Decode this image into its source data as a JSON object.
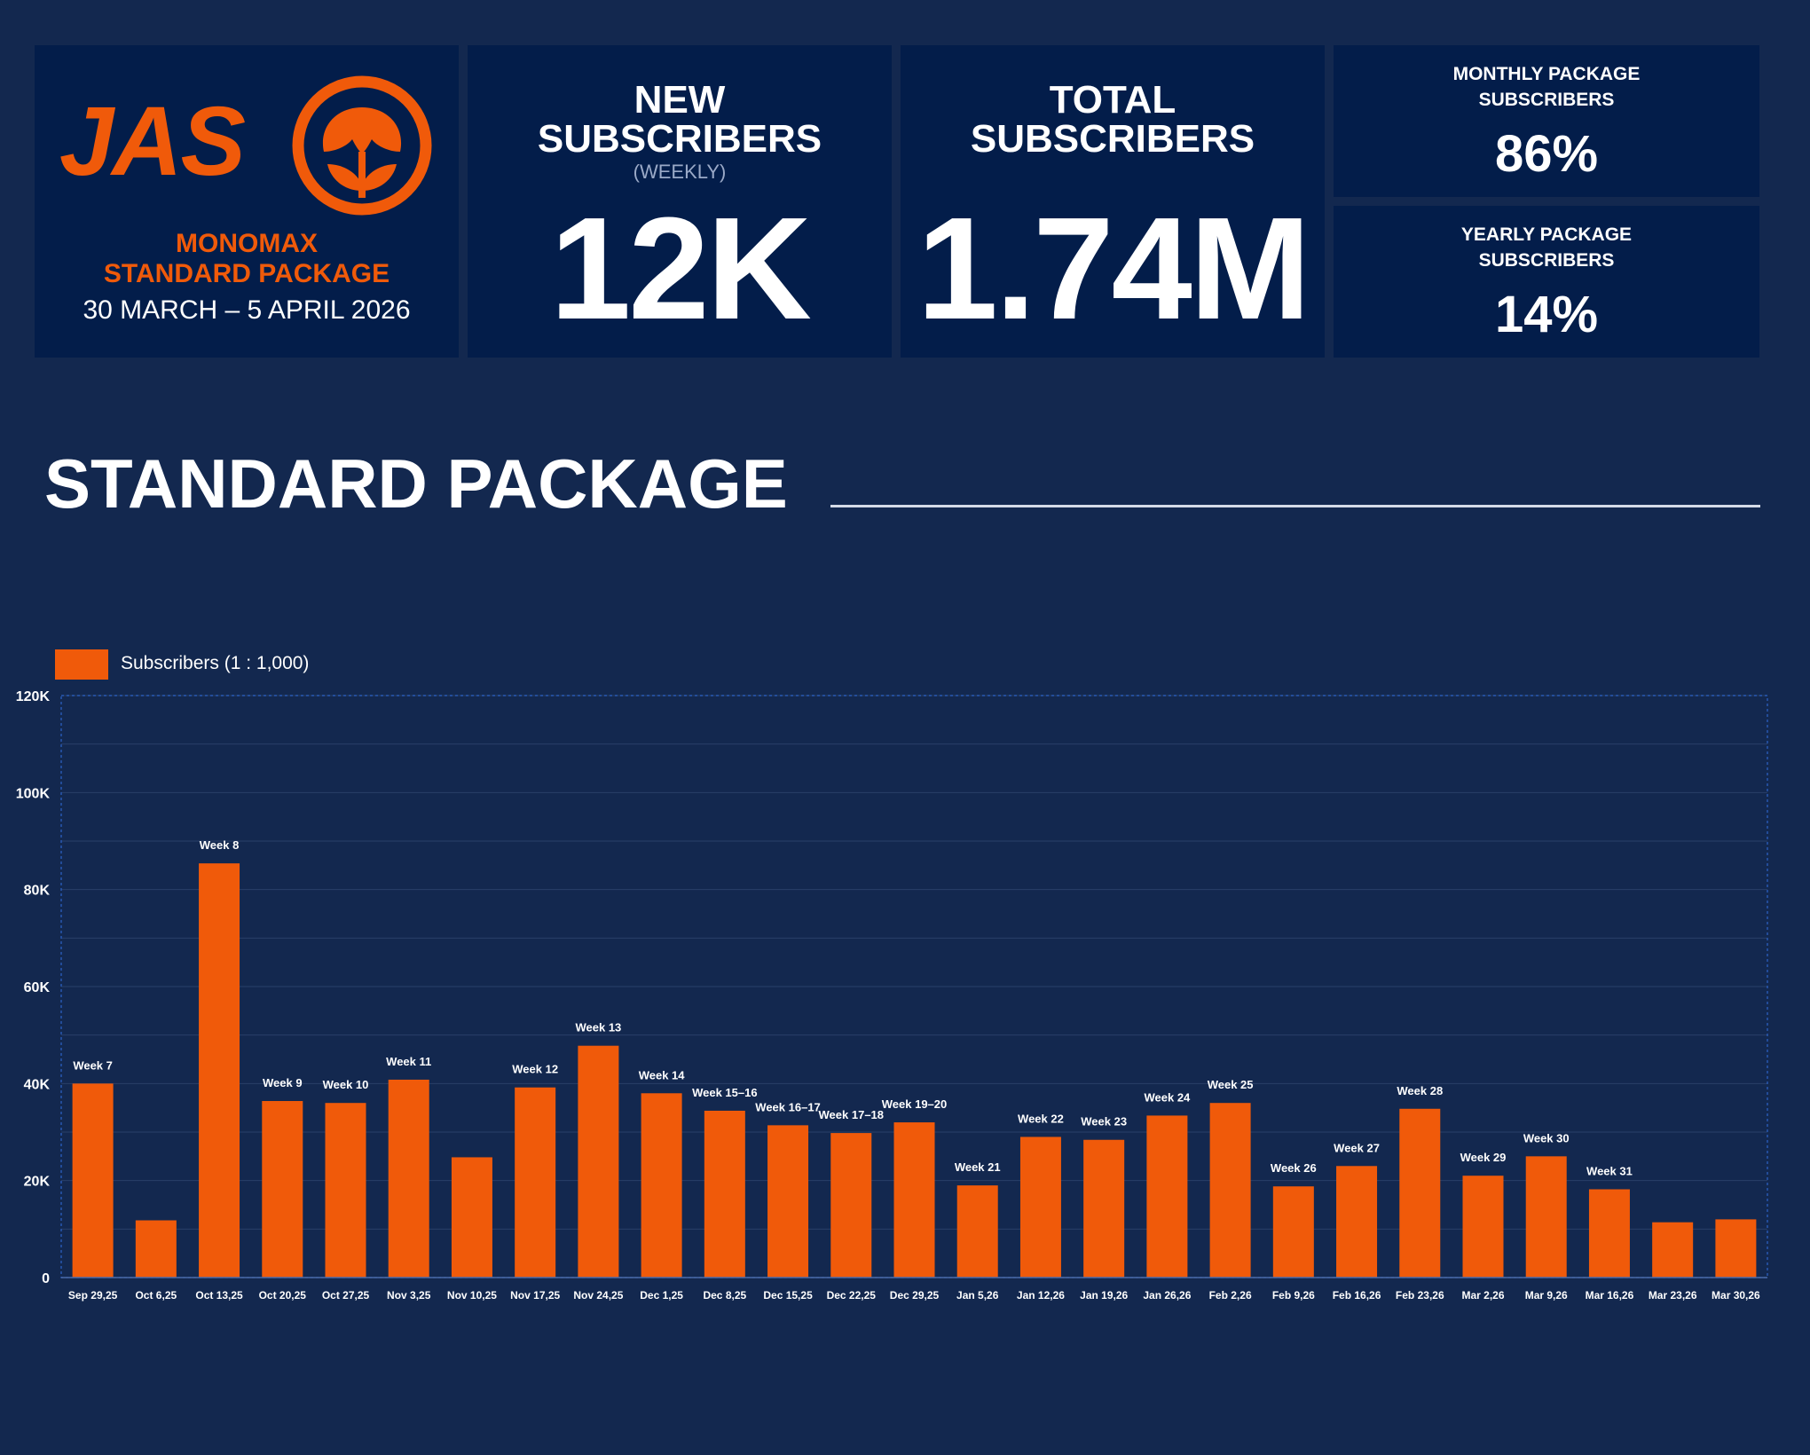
{
  "brand": {
    "logo_text": "JAS",
    "product": "MONOMAX",
    "package": "STANDARD PACKAGE",
    "date_range": "30 MARCH – 5 APRIL 2026"
  },
  "kpis": {
    "new_subscribers": {
      "title_line1": "NEW",
      "title_line2": "SUBSCRIBERS",
      "note": "(WEEKLY)",
      "value": "12K"
    },
    "total_subscribers": {
      "title_line1": "TOTAL",
      "title_line2": "SUBSCRIBERS",
      "value": "1.74M"
    },
    "monthly": {
      "title_line1": "MONTHLY PACKAGE",
      "title_line2": "SUBSCRIBERS",
      "value": "86%"
    },
    "yearly": {
      "title_line1": "YEARLY PACKAGE",
      "title_line2": "SUBSCRIBERS",
      "value": "14%"
    }
  },
  "section": {
    "title": "STANDARD PACKAGE"
  },
  "colors": {
    "background": "#13284f",
    "card": "#031d4a",
    "accent": "#f05a0a"
  },
  "chart_data": {
    "type": "bar",
    "title": "STANDARD PACKAGE",
    "xlabel": "",
    "ylabel": "",
    "ylim": [
      0,
      120000
    ],
    "yticks": [
      {
        "value": 0,
        "label": "0"
      },
      {
        "value": 20000,
        "label": "20K"
      },
      {
        "value": 40000,
        "label": "40K"
      },
      {
        "value": 60000,
        "label": "60K"
      },
      {
        "value": 80000,
        "label": "80K"
      },
      {
        "value": 100000,
        "label": "100K"
      },
      {
        "value": 120000,
        "label": "120K"
      }
    ],
    "grid": true,
    "legend": {
      "position": "top-left",
      "entries": [
        "Subscribers (1 : 1,000)"
      ]
    },
    "categories": [
      "Sep 29,25",
      "Oct 6,25",
      "Oct 13,25",
      "Oct 20,25",
      "Oct 27,25",
      "Nov 3,25",
      "Nov 10,25",
      "Nov 17,25",
      "Nov 24,25",
      "Dec 1,25",
      "Dec 8,25",
      "Dec 15,25",
      "Dec 22,25",
      "Dec 29,25",
      "Jan 5,26",
      "Jan 12,26",
      "Jan 19,26",
      "Jan 26,26",
      "Feb 2,26",
      "Feb 9,26",
      "Feb 16,26",
      "Feb 23,26",
      "Mar 2,26",
      "Mar 9,26",
      "Mar 16,26",
      "Mar 23,26",
      "Mar 30,26"
    ],
    "series": [
      {
        "name": "Subscribers (1 : 1,000)",
        "values": [
          40000,
          11800,
          85400,
          36400,
          36000,
          40800,
          24800,
          39200,
          47800,
          38000,
          34400,
          31400,
          29800,
          32000,
          19000,
          29000,
          28400,
          33400,
          36000,
          18800,
          23000,
          34800,
          21000,
          25000,
          18200,
          11400,
          12000
        ]
      }
    ],
    "annotations": [
      "Week 7",
      "",
      "Week 8",
      "Week 9",
      "Week 10",
      "Week 11",
      "",
      "Week 12",
      "Week 13",
      "Week 14",
      "Week 15–16",
      "Week 16–17",
      "Week 17–18",
      "Week 19–20",
      "Week 21",
      "Week 22",
      "Week 23",
      "Week 24",
      "Week 25",
      "Week 26",
      "Week 27",
      "Week 28",
      "Week 29",
      "Week 30",
      "Week 31",
      "",
      ""
    ]
  }
}
